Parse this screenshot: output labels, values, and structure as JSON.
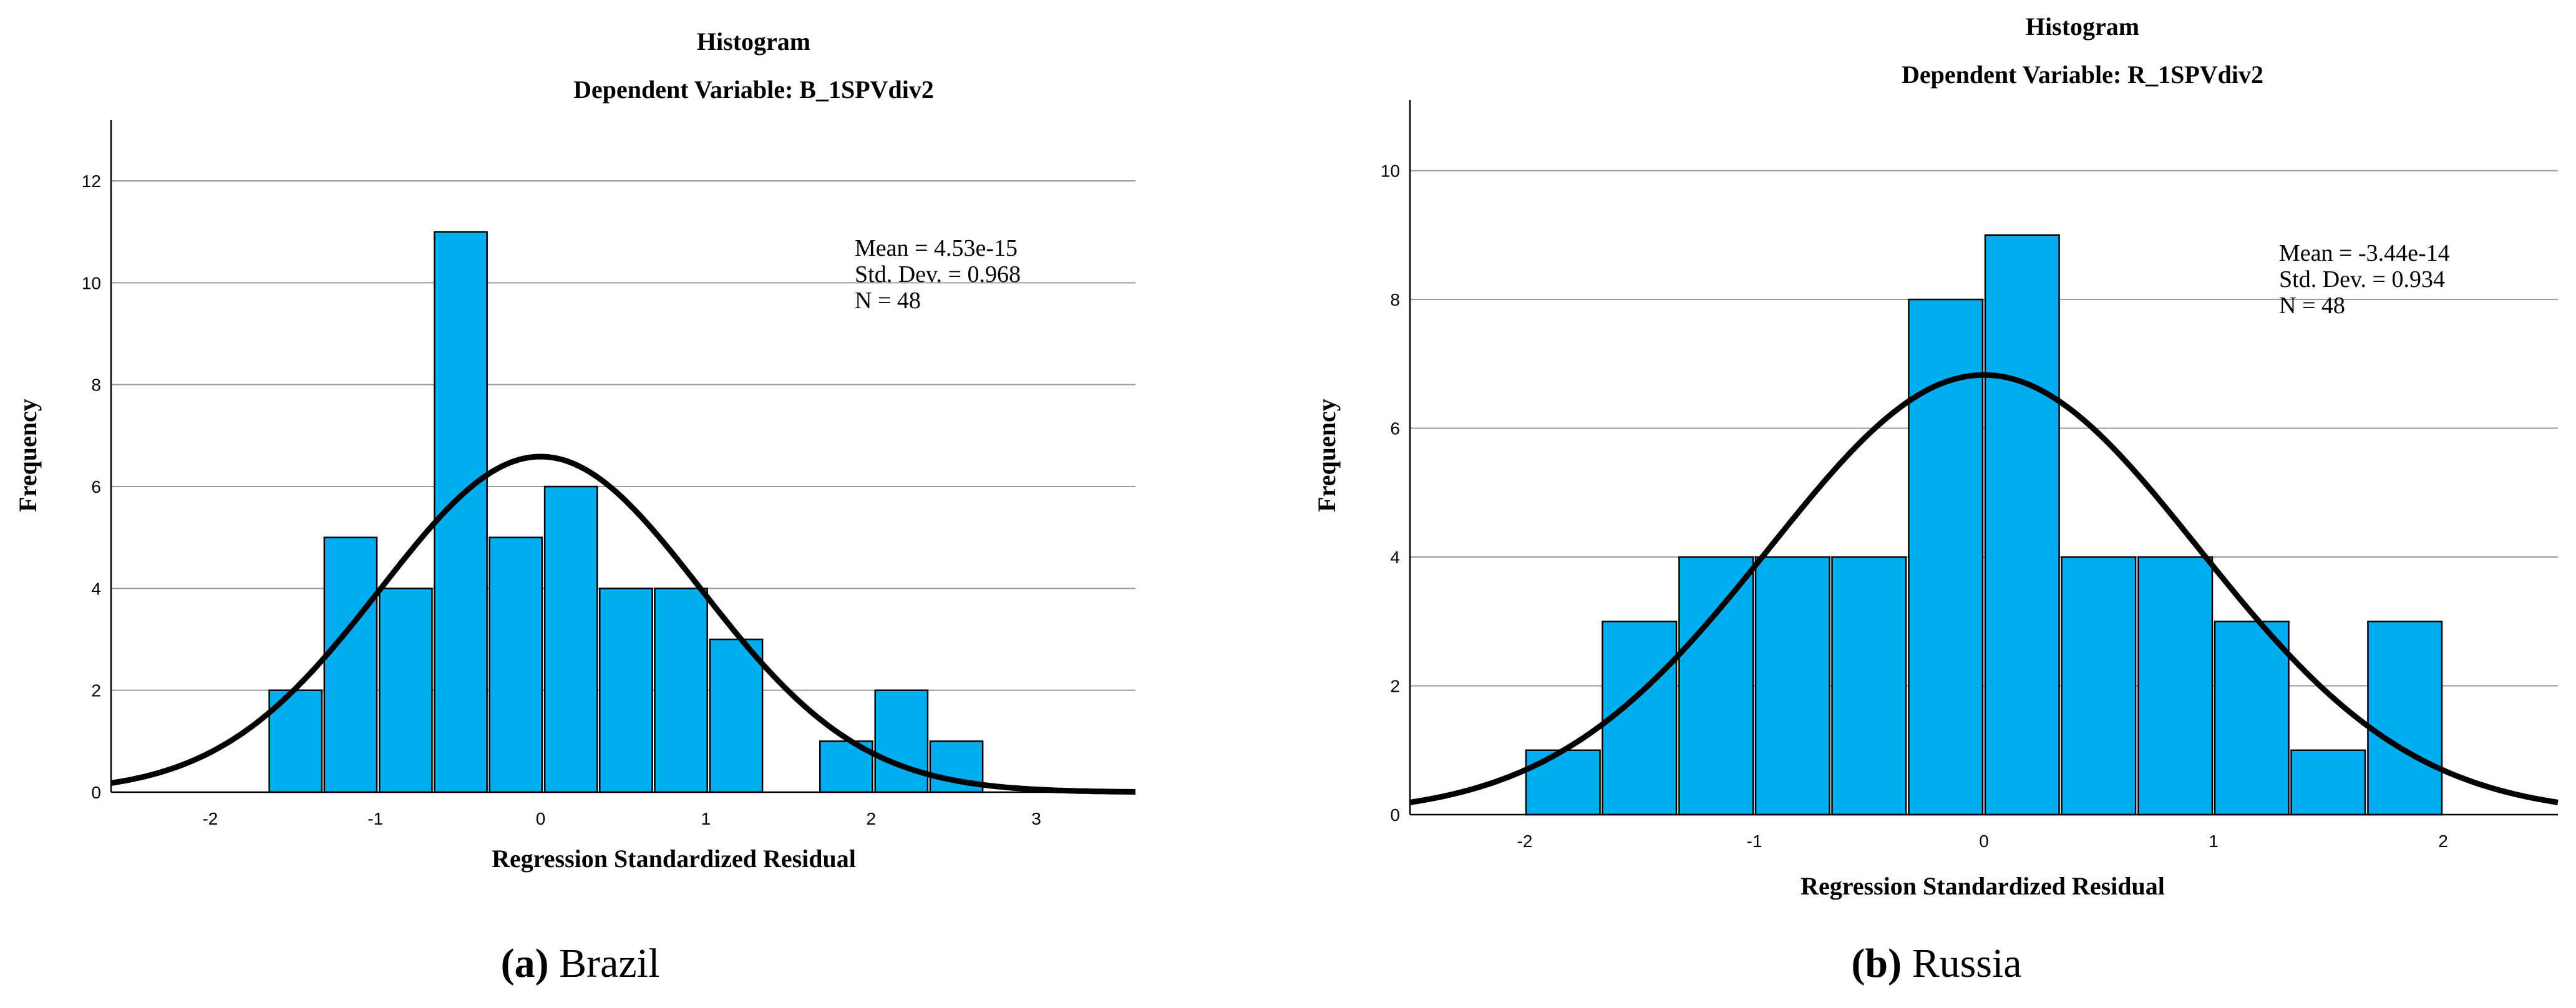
{
  "colors": {
    "bar": "#00aeef",
    "curve": "#000000",
    "grid": "#9a9a9a"
  },
  "chart_data": [
    {
      "type": "bar",
      "title": "Histogram",
      "subtitle": "Dependent Variable: B_1SPVdiv2",
      "xlabel": "Regression Standardized Residual",
      "ylabel": "Frequency",
      "xlim": [
        -2.6,
        3.6
      ],
      "ylim": [
        0,
        13.2
      ],
      "xticks": [
        -2,
        -1,
        0,
        1,
        2,
        3
      ],
      "yticks": [
        0,
        2,
        4,
        6,
        8,
        10,
        12
      ],
      "bin_width": 0.333,
      "bins": [
        {
          "start": -1.65,
          "count": 2
        },
        {
          "start": -1.317,
          "count": 5
        },
        {
          "start": -0.983,
          "count": 4
        },
        {
          "start": -0.65,
          "count": 11
        },
        {
          "start": -0.317,
          "count": 5
        },
        {
          "start": 0.017,
          "count": 6
        },
        {
          "start": 0.35,
          "count": 4
        },
        {
          "start": 0.683,
          "count": 4
        },
        {
          "start": 1.017,
          "count": 3
        },
        {
          "start": 1.683,
          "count": 1
        },
        {
          "start": 2.017,
          "count": 2
        },
        {
          "start": 2.35,
          "count": 1
        }
      ],
      "normal_curve": {
        "mean": 0,
        "sd": 0.968,
        "n": 48
      },
      "stats_lines": [
        "Mean = 4.53e-15",
        "Std. Dev. = 0.968",
        "N = 48"
      ],
      "caption_label": "(a)",
      "caption_text": " Brazil"
    },
    {
      "type": "bar",
      "title": "Histogram",
      "subtitle": "Dependent Variable: R_1SPVdiv2",
      "xlabel": "Regression Standardized Residual",
      "ylabel": "Frequency",
      "xlim": [
        -2.5,
        2.5
      ],
      "ylim": [
        0,
        11.1
      ],
      "xticks": [
        -2,
        -1,
        0,
        1,
        2
      ],
      "yticks": [
        0,
        2,
        4,
        6,
        8,
        10
      ],
      "bin_width": 0.333,
      "bins": [
        {
          "start": -2.0,
          "count": 1
        },
        {
          "start": -1.667,
          "count": 3
        },
        {
          "start": -1.333,
          "count": 4
        },
        {
          "start": -1.0,
          "count": 4
        },
        {
          "start": -0.667,
          "count": 4
        },
        {
          "start": -0.333,
          "count": 8
        },
        {
          "start": 0.0,
          "count": 9
        },
        {
          "start": 0.333,
          "count": 4
        },
        {
          "start": 0.667,
          "count": 4
        },
        {
          "start": 1.0,
          "count": 3
        },
        {
          "start": 1.333,
          "count": 1
        },
        {
          "start": 1.667,
          "count": 3
        }
      ],
      "normal_curve": {
        "mean": 0,
        "sd": 0.934,
        "n": 48
      },
      "stats_lines": [
        "Mean = -3.44e-14",
        "Std. Dev. = 0.934",
        "N = 48"
      ],
      "caption_label": "(b)",
      "caption_text": " Russia"
    }
  ]
}
